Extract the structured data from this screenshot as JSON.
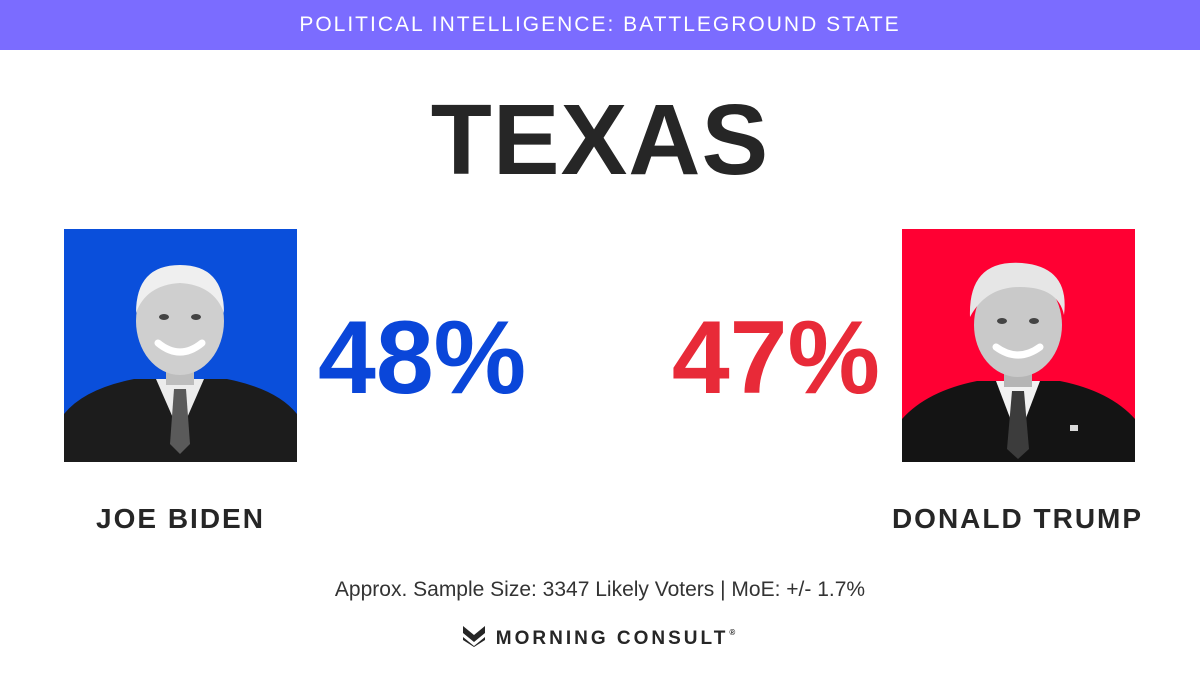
{
  "banner": {
    "title": "POLITICAL INTELLIGENCE: BATTLEGROUND STATE"
  },
  "state": "TEXAS",
  "candidates": [
    {
      "name": "JOE BIDEN",
      "percent": "48%",
      "share": 48,
      "color": "#0a46d9",
      "photo_bg": "#0a4fdb",
      "icon": "biden-photo"
    },
    {
      "name": "DONALD TRUMP",
      "percent": "47%",
      "share": 47,
      "color": "#e82a38",
      "photo_bg": "#ff0033",
      "icon": "trump-photo"
    }
  ],
  "footnote": "Approx. Sample Size: 3347 Likely Voters | MoE: +/- 1.7%",
  "brand": {
    "name": "MORNING CONSULT",
    "mark": "®",
    "icon": "morning-consult-logo"
  }
}
